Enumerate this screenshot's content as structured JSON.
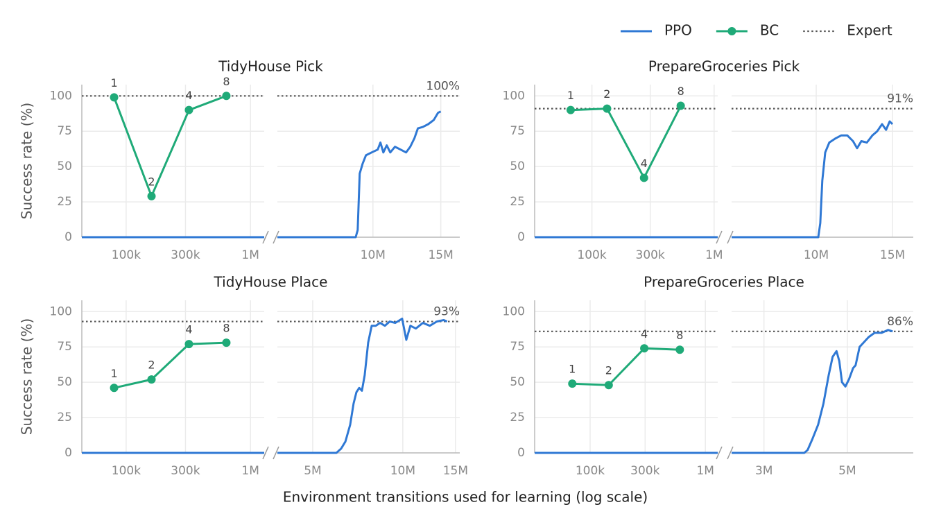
{
  "legend": "top-right",
  "x_label": "Environment transitions used for learning (log scale)",
  "chart_data": [
    {
      "type": "line",
      "title": "TidyHouse Pick",
      "y_label": "Success rate (%)",
      "ylim": [
        0,
        108
      ],
      "yticks": [
        0,
        25,
        50,
        75,
        100
      ],
      "grid": true,
      "panels": [
        {
          "xlim": [
            44000,
            1290000
          ],
          "log_x": true,
          "xticks": [
            {
              "value": 100000,
              "label": "100k"
            },
            {
              "value": 300000,
              "label": "300k"
            },
            {
              "value": 1000000,
              "label": "1M"
            }
          ]
        },
        {
          "xlim": [
            5650000,
            16800000
          ],
          "log_x": true,
          "xticks": [
            {
              "value": 10000000,
              "label": "10M"
            },
            {
              "value": 15000000,
              "label": "15M"
            }
          ]
        }
      ],
      "series": [
        {
          "name": "PPO",
          "color": "#2f78d4",
          "x": [
            44000,
            1290000,
            5650000,
            9020000,
            9130000,
            9240000,
            9400000,
            9590000,
            9920000,
            10290000,
            10460000,
            10640000,
            10860000,
            11090000,
            11410000,
            11800000,
            12190000,
            12500000,
            12810000,
            13080000,
            13470000,
            13920000,
            14390000,
            14750000,
            15000000
          ],
          "values": [
            0,
            0,
            0,
            0,
            5,
            45,
            52,
            58,
            60,
            62,
            67,
            60,
            65,
            60,
            64,
            62,
            60,
            64,
            70,
            77,
            78,
            80,
            83,
            88,
            89
          ]
        },
        {
          "name": "BC",
          "color": "#1faa78",
          "markers": true,
          "x": [
            80000,
            160000,
            320000,
            640000
          ],
          "values": [
            99,
            29,
            90,
            100
          ],
          "point_labels": [
            1,
            2,
            4,
            8
          ]
        }
      ],
      "expert": {
        "name": "Expert",
        "value": 100,
        "value_label": "100%",
        "color": "#555555"
      }
    },
    {
      "type": "line",
      "title": "PrepareGroceries Pick",
      "ylim": [
        0,
        108
      ],
      "yticks": [
        0,
        25,
        50,
        75,
        100
      ],
      "grid": true,
      "panels": [
        {
          "xlim": [
            34000,
            1070000
          ],
          "log_x": true,
          "xticks": [
            {
              "value": 100000,
              "label": "100k"
            },
            {
              "value": 300000,
              "label": "300k"
            },
            {
              "value": 1000000,
              "label": "1M"
            }
          ]
        },
        {
          "xlim": [
            6380000,
            16750000
          ],
          "log_x": true,
          "xticks": [
            {
              "value": 10000000,
              "label": "10M"
            },
            {
              "value": 15000000,
              "label": "15M"
            }
          ]
        }
      ],
      "series": [
        {
          "name": "PPO",
          "color": "#2f78d4",
          "x": [
            34000,
            1070000,
            6380000,
            10110000,
            10220000,
            10330000,
            10490000,
            10720000,
            11090000,
            11420000,
            11800000,
            12160000,
            12430000,
            12710000,
            13090000,
            13480000,
            13830000,
            14190000,
            14500000,
            14780000,
            15000000
          ],
          "values": [
            0,
            0,
            0,
            0,
            10,
            40,
            60,
            67,
            70,
            72,
            72,
            68,
            63,
            68,
            67,
            72,
            75,
            80,
            76,
            82,
            80
          ]
        },
        {
          "name": "BC",
          "color": "#1faa78",
          "markers": true,
          "x": [
            67000,
            133000,
            267000,
            533000
          ],
          "values": [
            90,
            91,
            42,
            93
          ],
          "point_labels": [
            1,
            2,
            4,
            8
          ]
        }
      ],
      "expert": {
        "name": "Expert",
        "value": 91,
        "value_label": "91%",
        "color": "#555555"
      }
    },
    {
      "type": "line",
      "title": "TidyHouse Place",
      "y_label": "Success rate (%)",
      "ylim": [
        0,
        108
      ],
      "yticks": [
        0,
        25,
        50,
        75,
        100
      ],
      "grid": true,
      "panels": [
        {
          "xlim": [
            44000,
            1290000
          ],
          "log_x": true,
          "xticks": [
            {
              "value": 100000,
              "label": "100k"
            },
            {
              "value": 300000,
              "label": "300k"
            },
            {
              "value": 1000000,
              "label": "1M"
            }
          ]
        },
        {
          "xlim": [
            3810000,
            15500000
          ],
          "log_x": true,
          "xticks": [
            {
              "value": 5000000,
              "label": "5M"
            },
            {
              "value": 10000000,
              "label": "10M"
            },
            {
              "value": 15000000,
              "label": "15M"
            }
          ]
        }
      ],
      "series": [
        {
          "name": "PPO",
          "color": "#2f78d4",
          "x": [
            44000,
            1290000,
            3810000,
            6000000,
            6220000,
            6430000,
            6670000,
            6850000,
            7000000,
            7150000,
            7300000,
            7460000,
            7660000,
            7870000,
            8120000,
            8390000,
            8710000,
            9040000,
            9430000,
            9950000,
            10270000,
            10600000,
            11060000,
            11670000,
            12310000,
            12990000,
            13700000,
            14060000
          ],
          "values": [
            0,
            0,
            0,
            0,
            3,
            8,
            20,
            35,
            43,
            46,
            44,
            55,
            78,
            90,
            90,
            92,
            90,
            93,
            92,
            95,
            80,
            90,
            88,
            92,
            90,
            93,
            94,
            93
          ]
        },
        {
          "name": "BC",
          "color": "#1faa78",
          "markers": true,
          "x": [
            80000,
            160000,
            320000,
            640000
          ],
          "values": [
            46,
            52,
            77,
            78
          ],
          "point_labels": [
            1,
            2,
            4,
            8
          ]
        }
      ],
      "expert": {
        "name": "Expert",
        "value": 93,
        "value_label": "93%",
        "color": "#555555"
      }
    },
    {
      "type": "line",
      "title": "PrepareGroceries Place",
      "ylim": [
        0,
        108
      ],
      "yticks": [
        0,
        25,
        50,
        75,
        100
      ],
      "grid": true,
      "panels": [
        {
          "xlim": [
            33000,
            1280000
          ],
          "log_x": true,
          "xticks": [
            {
              "value": 100000,
              "label": "100k"
            },
            {
              "value": 300000,
              "label": "300k"
            },
            {
              "value": 1000000,
              "label": "1M"
            }
          ]
        },
        {
          "xlim": [
            2460000,
            7490000
          ],
          "log_x": true,
          "xticks": [
            {
              "value": 3000000,
              "label": "3M"
            },
            {
              "value": 5000000,
              "label": "5M"
            }
          ]
        }
      ],
      "series": [
        {
          "name": "PPO",
          "color": "#2f78d4",
          "x": [
            33000,
            1280000,
            2460000,
            3840000,
            3920000,
            4040000,
            4180000,
            4320000,
            4460000,
            4570000,
            4680000,
            4760000,
            4840000,
            4940000,
            5050000,
            5180000,
            5260000,
            5390000,
            5520000,
            5700000,
            5910000,
            6170000,
            6420000,
            6600000
          ],
          "values": [
            0,
            0,
            0,
            0,
            2,
            10,
            20,
            35,
            55,
            68,
            72,
            65,
            50,
            47,
            52,
            60,
            62,
            75,
            78,
            82,
            85,
            85,
            87,
            86
          ]
        },
        {
          "name": "BC",
          "color": "#1faa78",
          "markers": true,
          "x": [
            70000,
            145000,
            295000,
            600000
          ],
          "values": [
            49,
            48,
            74,
            73
          ],
          "point_labels": [
            1,
            2,
            4,
            8
          ]
        }
      ],
      "expert": {
        "name": "Expert",
        "value": 86,
        "value_label": "86%",
        "color": "#555555"
      }
    }
  ]
}
